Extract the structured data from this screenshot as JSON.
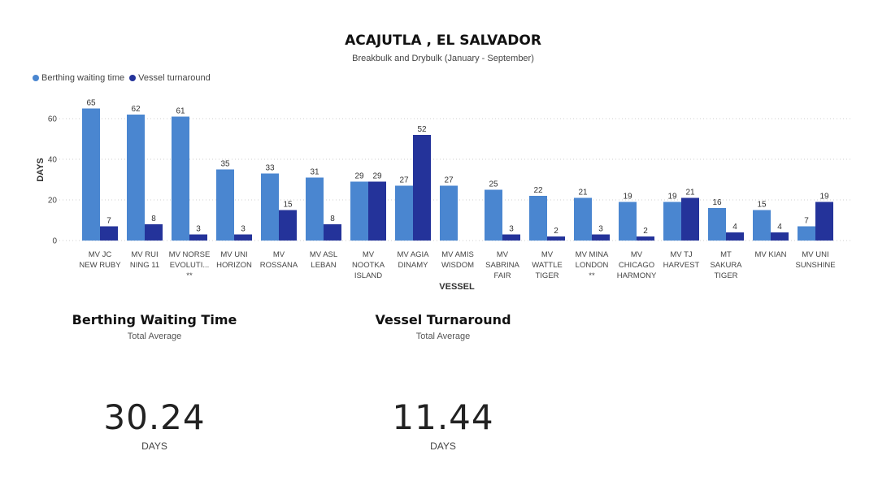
{
  "chart_data": {
    "type": "bar",
    "title": "ACAJUTLA , EL SALVADOR",
    "subtitle": "Breakbulk and Drybulk (January - September)",
    "xlabel": "VESSEL",
    "ylabel": "DAYS",
    "ylim": [
      0,
      70
    ],
    "yticks": [
      0,
      20,
      40,
      60
    ],
    "grid": true,
    "legend_position": "top-left",
    "categories": [
      [
        "MV JC",
        "NEW RUBY"
      ],
      [
        "MV RUI",
        "NING 11"
      ],
      [
        "MV NORSE",
        "EVOLUTI...",
        "**"
      ],
      [
        "MV UNI",
        "HORIZON"
      ],
      [
        "MV",
        "ROSSANA"
      ],
      [
        "MV ASL",
        "LEBAN"
      ],
      [
        "MV",
        "NOOTKA",
        "ISLAND"
      ],
      [
        "MV AGIA",
        "DINAMY"
      ],
      [
        "MV AMIS",
        "WISDOM"
      ],
      [
        "MV",
        "SABRINA",
        "FAIR"
      ],
      [
        "MV",
        "WATTLE",
        "TIGER"
      ],
      [
        "MV MINA",
        "LONDON",
        "**"
      ],
      [
        "MV",
        "CHICAGO",
        "HARMONY"
      ],
      [
        "MV TJ",
        "HARVEST"
      ],
      [
        "MT",
        "SAKURA",
        "TIGER"
      ],
      [
        "MV KIAN"
      ],
      [
        "MV UNI",
        "SUNSHINE"
      ]
    ],
    "series": [
      {
        "name": "Berthing waiting time",
        "color": "#4A86D0",
        "values": [
          65,
          62,
          61,
          35,
          33,
          31,
          29,
          27,
          27,
          25,
          22,
          21,
          19,
          19,
          16,
          15,
          7
        ]
      },
      {
        "name": "Vessel turnaround",
        "color": "#24339A",
        "values": [
          7,
          8,
          3,
          3,
          15,
          8,
          29,
          52,
          null,
          3,
          2,
          3,
          2,
          21,
          4,
          4,
          19
        ]
      }
    ]
  },
  "kpis": {
    "berthing": {
      "title": "Berthing Waiting Time",
      "subtitle": "Total Average",
      "value": "30.24",
      "unit": "DAYS"
    },
    "turnaround": {
      "title": "Vessel Turnaround",
      "subtitle": "Total Average",
      "value": "11.44",
      "unit": "DAYS"
    }
  }
}
